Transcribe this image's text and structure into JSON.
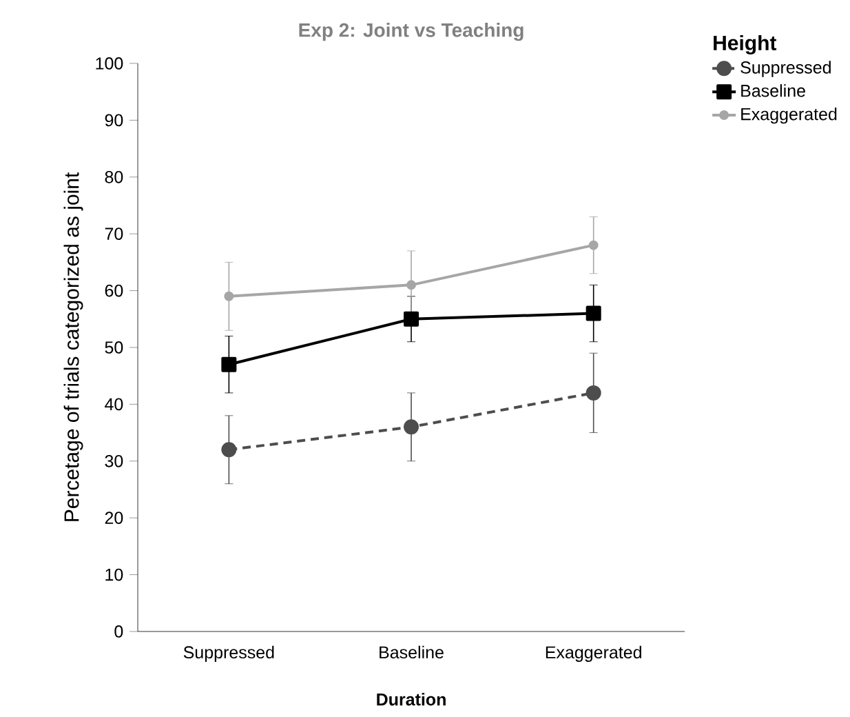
{
  "chart_data": {
    "type": "line",
    "title": "Exp 2: Joint vs Teaching",
    "xlabel": "Duration",
    "ylabel": "Percetage of trials categorized as joint",
    "legend_title": "Height",
    "categories": [
      "Suppressed",
      "Baseline",
      "Exaggerated"
    ],
    "series": [
      {
        "name": "Suppressed",
        "color": "#4d4d4d",
        "values": [
          32,
          36,
          42
        ],
        "errors": [
          6,
          6,
          7
        ],
        "marker": "circle",
        "line_style": "dashed"
      },
      {
        "name": "Baseline",
        "color": "#000000",
        "values": [
          47,
          55,
          56
        ],
        "errors": [
          5,
          4,
          5
        ],
        "marker": "square",
        "line_style": "solid"
      },
      {
        "name": "Exaggerated",
        "color": "#a6a6a6",
        "values": [
          59,
          61,
          68
        ],
        "errors": [
          6,
          6,
          5
        ],
        "marker": "circle",
        "line_style": "solid"
      }
    ],
    "ylim": [
      0,
      100
    ],
    "yticks": [
      0,
      10,
      20,
      30,
      40,
      50,
      60,
      70,
      80,
      90,
      100
    ],
    "grid": false,
    "legend": "top right"
  }
}
